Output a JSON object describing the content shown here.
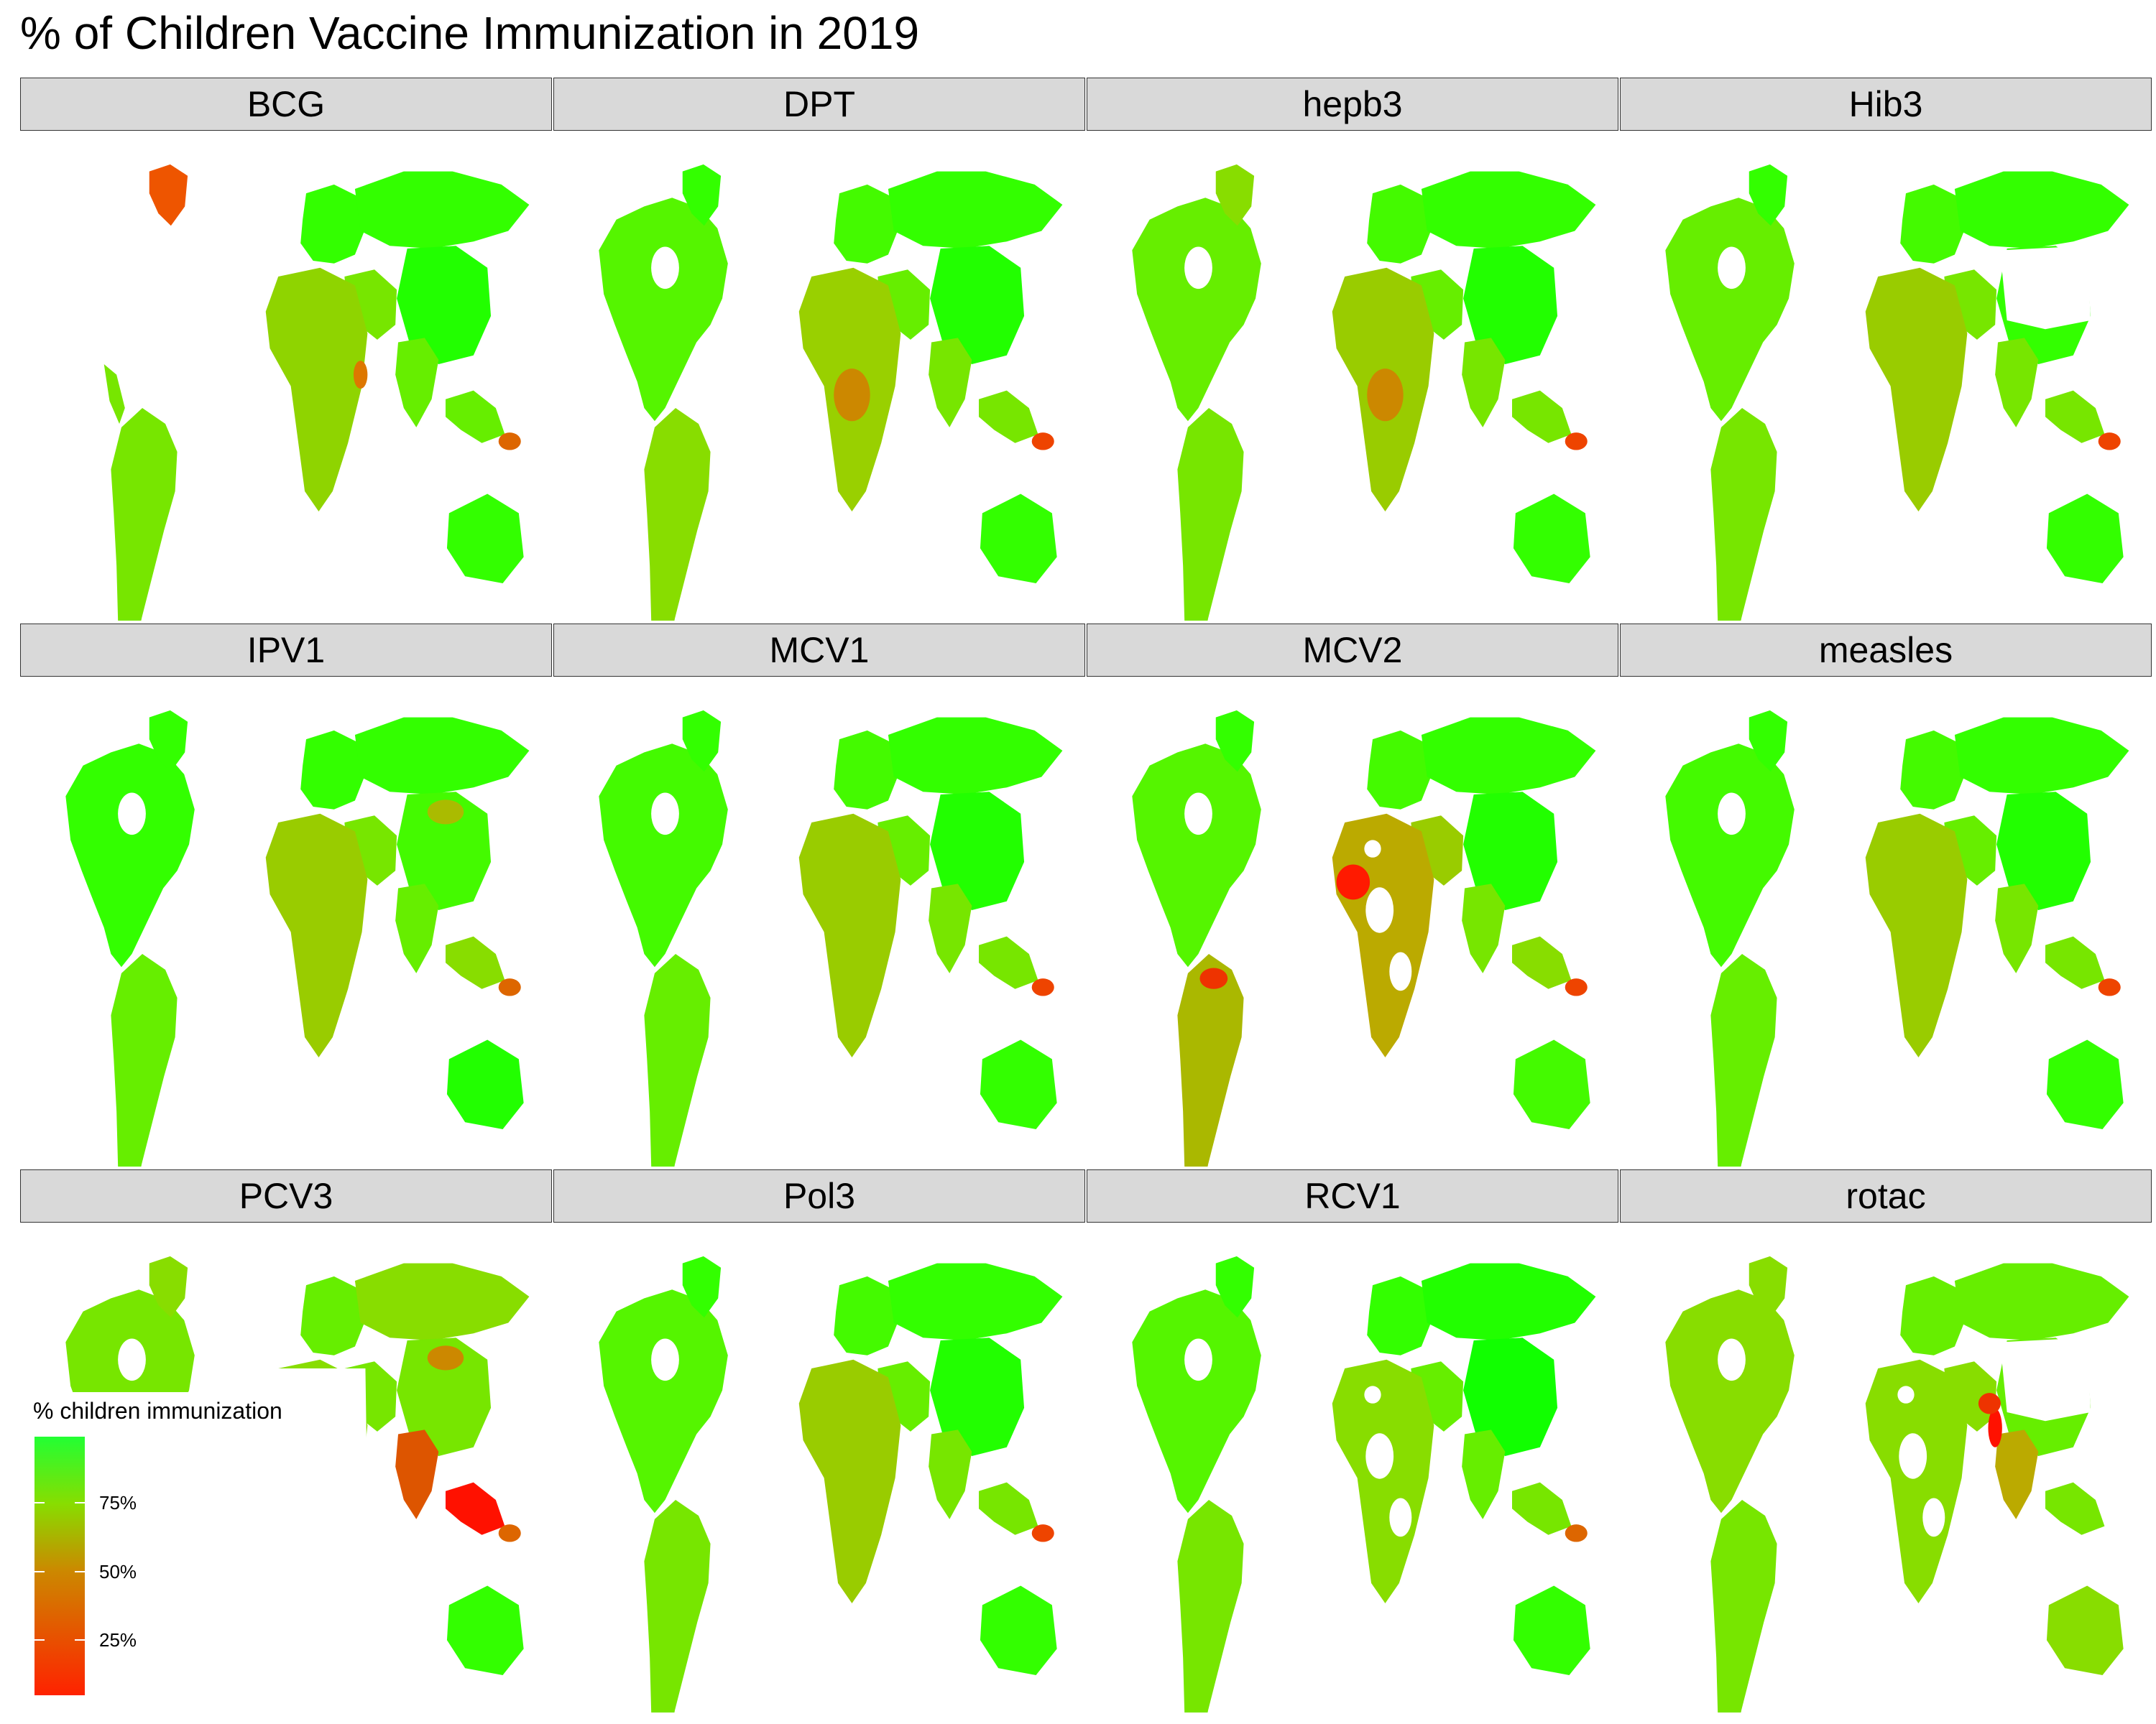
{
  "title": "% of Children Vaccine Immunization in 2019",
  "chart_data": {
    "type": "choropleth-map",
    "facets": [
      {
        "label": "BCG",
        "western_hemisphere": false,
        "asia_gaps": false,
        "africa_gaps": false,
        "pcv_gaps": false,
        "colors": {
          "na": "#33ff00",
          "sa": "#77e600",
          "eu": "#33ff00",
          "af": "#8fd400",
          "ru": "#33ff00",
          "cn": "#22ff00",
          "in": "#66ee00",
          "au": "#33ff00",
          "sea": "#66ee00",
          "mideast": "#77e600",
          "gl": "#ee5500"
        },
        "hotspots": [
          {
            "region": "png",
            "color": "#dd6600"
          },
          {
            "region": "somalia",
            "color": "#dd7700"
          }
        ]
      },
      {
        "label": "DPT",
        "western_hemisphere": true,
        "asia_gaps": false,
        "africa_gaps": false,
        "pcv_gaps": false,
        "colors": {
          "na": "#55f500",
          "sa": "#88dd00",
          "eu": "#44fa00",
          "af": "#99d000",
          "ru": "#33ff00",
          "cn": "#22ff00",
          "in": "#77e600",
          "au": "#33ff00",
          "sea": "#77e600",
          "mideast": "#66ee00",
          "gl": "#33ff00"
        },
        "hotspots": [
          {
            "region": "png",
            "color": "#ee4400"
          },
          {
            "region": "central-af",
            "color": "#cc8800"
          }
        ]
      },
      {
        "label": "hepb3",
        "western_hemisphere": true,
        "asia_gaps": false,
        "africa_gaps": false,
        "pcv_gaps": false,
        "colors": {
          "na": "#66ee00",
          "sa": "#77e600",
          "eu": "#44fa00",
          "af": "#99cc00",
          "ru": "#33ff00",
          "cn": "#22ff00",
          "in": "#77e600",
          "au": "#33ff00",
          "sea": "#77e600",
          "mideast": "#66ee00",
          "gl": "#88dd00"
        },
        "hotspots": [
          {
            "region": "png",
            "color": "#ee4400"
          },
          {
            "region": "central-af",
            "color": "#cc8800"
          }
        ]
      },
      {
        "label": "Hib3",
        "western_hemisphere": true,
        "asia_gaps": true,
        "africa_gaps": false,
        "pcv_gaps": false,
        "colors": {
          "na": "#66ee00",
          "sa": "#77e600",
          "eu": "#44fa00",
          "af": "#99cc00",
          "ru": "#33ff00",
          "cn": "#33ff00",
          "in": "#77e600",
          "au": "#33ff00",
          "sea": "#77e600",
          "mideast": "#77e600",
          "gl": "#33ff00"
        },
        "hotspots": [
          {
            "region": "png",
            "color": "#ee4400"
          }
        ]
      },
      {
        "label": "IPV1",
        "western_hemisphere": true,
        "asia_gaps": false,
        "africa_gaps": false,
        "pcv_gaps": false,
        "colors": {
          "na": "#33ff00",
          "sa": "#66ee00",
          "eu": "#33ff00",
          "af": "#99cc00",
          "ru": "#33ff00",
          "cn": "#44fa00",
          "in": "#66ee00",
          "au": "#22ff00",
          "sea": "#88dd00",
          "mideast": "#77e600",
          "gl": "#33ff00"
        },
        "hotspots": [
          {
            "region": "png",
            "color": "#dd6600"
          },
          {
            "region": "mongolia",
            "color": "#aabb00"
          }
        ]
      },
      {
        "label": "MCV1",
        "western_hemisphere": true,
        "asia_gaps": false,
        "africa_gaps": false,
        "pcv_gaps": false,
        "colors": {
          "na": "#44fa00",
          "sa": "#66ee00",
          "eu": "#44fa00",
          "af": "#99cc00",
          "ru": "#33ff00",
          "cn": "#22ff00",
          "in": "#77e600",
          "au": "#33ff00",
          "sea": "#77e600",
          "mideast": "#66ee00",
          "gl": "#33ff00"
        },
        "hotspots": [
          {
            "region": "png",
            "color": "#ee4400"
          }
        ]
      },
      {
        "label": "MCV2",
        "western_hemisphere": true,
        "asia_gaps": false,
        "africa_gaps": true,
        "pcv_gaps": false,
        "colors": {
          "na": "#55f500",
          "sa": "#aab800",
          "eu": "#44fa00",
          "af": "#bbaa00",
          "ru": "#33ff00",
          "cn": "#22ff00",
          "in": "#77e600",
          "au": "#44fa00",
          "sea": "#88dd00",
          "mideast": "#99cc00",
          "gl": "#33ff00"
        },
        "hotspots": [
          {
            "region": "west-af",
            "color": "#ff1a00"
          },
          {
            "region": "venezuela",
            "color": "#ee3300"
          },
          {
            "region": "png",
            "color": "#ee4400"
          }
        ]
      },
      {
        "label": "measles",
        "western_hemisphere": true,
        "asia_gaps": false,
        "africa_gaps": false,
        "pcv_gaps": false,
        "colors": {
          "na": "#44fa00",
          "sa": "#66ee00",
          "eu": "#44fa00",
          "af": "#99cc00",
          "ru": "#33ff00",
          "cn": "#22ff00",
          "in": "#77e600",
          "au": "#33ff00",
          "sea": "#77e600",
          "mideast": "#66ee00",
          "gl": "#33ff00"
        },
        "hotspots": [
          {
            "region": "png",
            "color": "#ee4400"
          }
        ]
      },
      {
        "label": "PCV3",
        "western_hemisphere": true,
        "asia_gaps": false,
        "africa_gaps": false,
        "pcv_gaps": true,
        "colors": {
          "na": "#77e600",
          "sa": "#77e600",
          "eu": "#66ee00",
          "af": "#88dd00",
          "ru": "#88dd00",
          "cn": "#77e600",
          "in": "#dd5500",
          "au": "#33ff00",
          "sea": "#ff1100",
          "mideast": "#77e600",
          "gl": "#88dd00"
        },
        "hotspots": [
          {
            "region": "mongolia",
            "color": "#cc8800"
          },
          {
            "region": "png",
            "color": "#dd6600"
          }
        ]
      },
      {
        "label": "Pol3",
        "western_hemisphere": true,
        "asia_gaps": false,
        "africa_gaps": false,
        "pcv_gaps": false,
        "colors": {
          "na": "#55f500",
          "sa": "#77e600",
          "eu": "#44fa00",
          "af": "#99cc00",
          "ru": "#33ff00",
          "cn": "#22ff00",
          "in": "#77e600",
          "au": "#33ff00",
          "sea": "#77e600",
          "mideast": "#66ee00",
          "gl": "#33ff00"
        },
        "hotspots": [
          {
            "region": "png",
            "color": "#ee4400"
          }
        ]
      },
      {
        "label": "RCV1",
        "western_hemisphere": true,
        "asia_gaps": false,
        "africa_gaps": true,
        "pcv_gaps": false,
        "colors": {
          "na": "#55f500",
          "sa": "#77e600",
          "eu": "#33ff00",
          "af": "#88dd00",
          "ru": "#22ff00",
          "cn": "#11ff00",
          "in": "#66ee00",
          "au": "#33ff00",
          "sea": "#77e600",
          "mideast": "#66ee00",
          "gl": "#33ff00"
        },
        "hotspots": [
          {
            "region": "png",
            "color": "#dd6600"
          }
        ]
      },
      {
        "label": "rotac",
        "western_hemisphere": true,
        "asia_gaps": true,
        "africa_gaps": true,
        "pcv_gaps": false,
        "colors": {
          "na": "#88dd00",
          "sa": "#77e600",
          "eu": "#66ee00",
          "af": "#88dd00",
          "ru": "#66ee00",
          "cn": "#66ee00",
          "in": "#bbaa00",
          "au": "#88dd00",
          "sea": "#77e600",
          "mideast": "#88dd00",
          "gl": "#88dd00"
        },
        "hotspots": [
          {
            "region": "pakistan",
            "color": "#ff1100"
          },
          {
            "region": "afghanistan",
            "color": "#ee3300"
          }
        ]
      }
    ],
    "legend": {
      "title": "% children immunization",
      "ticks": [
        {
          "value": 75,
          "label": "75%"
        },
        {
          "value": 50,
          "label": "50%"
        },
        {
          "value": 25,
          "label": "25%"
        }
      ],
      "range": [
        5,
        99
      ],
      "low_color": "#ff2200",
      "mid_color": "#cc8800",
      "high_color": "#22ff33"
    }
  }
}
